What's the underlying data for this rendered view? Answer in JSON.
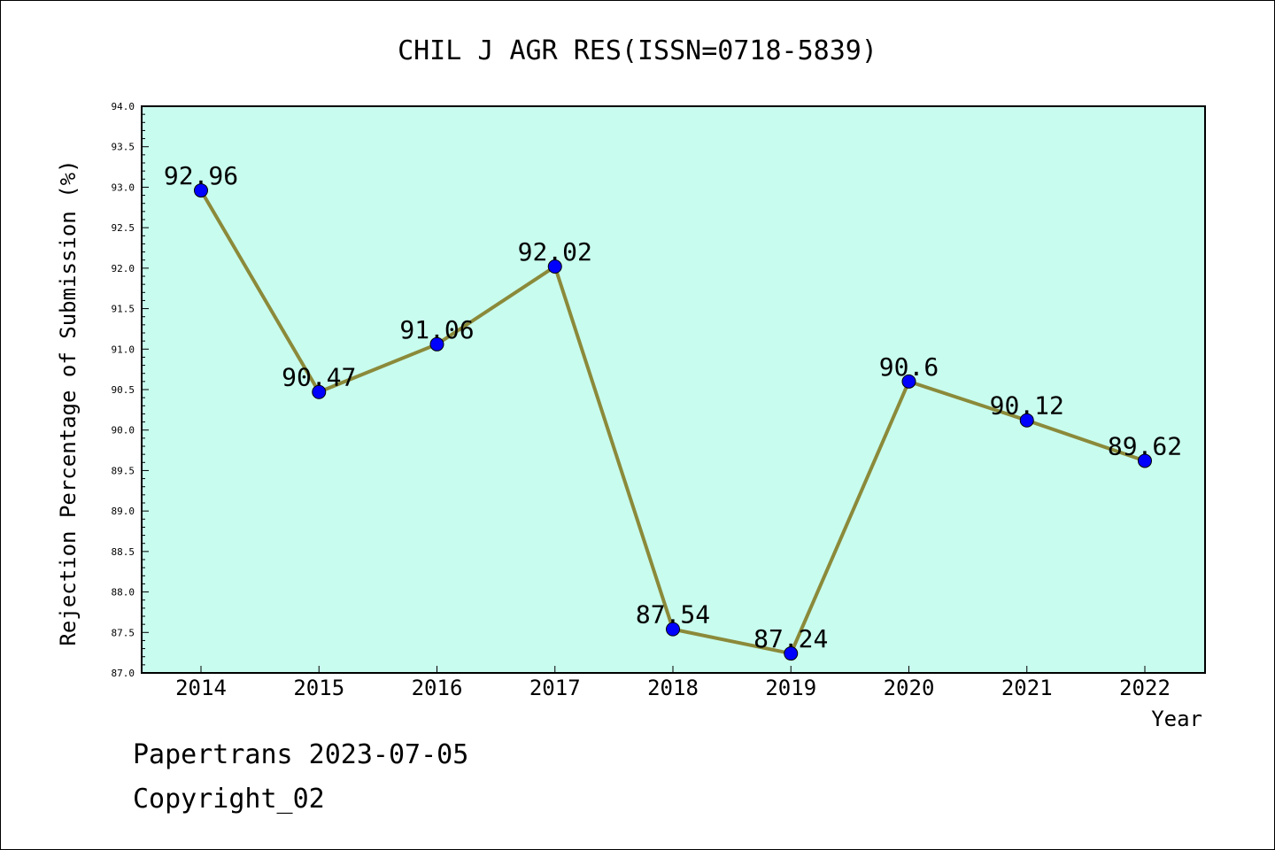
{
  "chart_data": {
    "type": "line",
    "title": "CHIL J AGR RES(ISSN=0718-5839)",
    "xlabel": "Year",
    "ylabel": "Rejection Percentage of Submission (%)",
    "categories": [
      "2014",
      "2015",
      "2016",
      "2017",
      "2018",
      "2019",
      "2020",
      "2021",
      "2022"
    ],
    "series": [
      {
        "values": [
          92.96,
          90.47,
          91.06,
          92.02,
          87.54,
          87.24,
          90.6,
          90.12,
          89.62
        ],
        "labels": [
          "92.96",
          "90.47",
          "91.06",
          "92.02",
          "87.54",
          "87.24",
          "90.6",
          "90.12",
          "89.62"
        ]
      }
    ],
    "ylim": [
      87.0,
      94.0
    ],
    "yticks": [
      "87.0",
      "87.5",
      "88.0",
      "88.5",
      "89.0",
      "89.5",
      "90.0",
      "90.5",
      "91.0",
      "91.5",
      "92.0",
      "92.5",
      "93.0",
      "93.5",
      "94.0"
    ],
    "grid": false,
    "colors": {
      "plot_background": "#c8fcee",
      "line": "#8b8a3a",
      "marker": "#0000ff"
    }
  },
  "footer": {
    "line1": "Papertrans 2023-07-05",
    "line2": "Copyright_02"
  }
}
